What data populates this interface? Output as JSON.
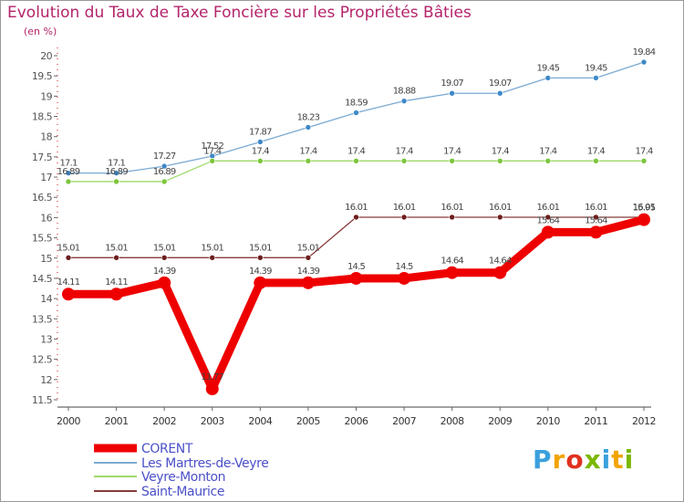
{
  "title": "Evolution du Taux de Taxe Foncière sur les Propriétés Bâties",
  "unit": "(en %)",
  "brand": {
    "text": "Proxiti",
    "letter_colors": [
      "#3aa0dc",
      "#f2a400",
      "#e0301e",
      "#7ab800",
      "#3aa0dc",
      "#f2a400",
      "#7ab800"
    ]
  },
  "chart_data": {
    "type": "line",
    "title": "Evolution du Taux de Taxe Foncière sur les Propriétés Bâties",
    "ylabel": "(en %)",
    "xlabel": "",
    "x": [
      "2000",
      "2001",
      "2002",
      "2003",
      "2004",
      "2005",
      "2006",
      "2007",
      "2008",
      "2009",
      "2010",
      "2011",
      "2012"
    ],
    "ylim": [
      11.5,
      20
    ],
    "yticks": [
      "11.5",
      "12",
      "12.5",
      "13",
      "13.5",
      "14",
      "14.5",
      "15",
      "15.5",
      "16",
      "16.5",
      "17",
      "17.5",
      "18",
      "18.5",
      "19",
      "19.5",
      "20"
    ],
    "grid": false,
    "legend_position": "bottom-left",
    "series": [
      {
        "name": "CORENT",
        "color": "#ee0000",
        "values": [
          14.11,
          14.11,
          14.39,
          11.77,
          14.39,
          14.39,
          14.5,
          14.5,
          14.64,
          14.64,
          15.64,
          15.64,
          15.95
        ],
        "labels": [
          "14.11",
          "14.11",
          "14.39",
          "11.77",
          "14.39",
          "14.39",
          "14.5",
          "14.5",
          "14.64",
          "14.64",
          "15.64",
          "15.64",
          "15.95"
        ]
      },
      {
        "name": "Les Martres-de-Veyre",
        "color": "#7aaad2",
        "marker_color": "#3d89c9",
        "values": [
          17.1,
          17.1,
          17.27,
          17.52,
          17.87,
          18.23,
          18.59,
          18.88,
          19.07,
          19.07,
          19.45,
          19.45,
          19.84
        ],
        "labels": [
          "17.1",
          "17.1",
          "17.27",
          "17.52",
          "17.87",
          "18.23",
          "18.59",
          "18.88",
          "19.07",
          "19.07",
          "19.45",
          "19.45",
          "19.84"
        ]
      },
      {
        "name": "Veyre-Monton",
        "color": "#9ed96a",
        "marker_color": "#7cc63a",
        "values": [
          16.89,
          16.89,
          16.89,
          17.4,
          17.4,
          17.4,
          17.4,
          17.4,
          17.4,
          17.4,
          17.4,
          17.4,
          17.4
        ],
        "labels": [
          "16.89",
          "16.89",
          "16.89",
          "17.4",
          "17.4",
          "17.4",
          "17.4",
          "17.4",
          "17.4",
          "17.4",
          "17.4",
          "17.4",
          "17.4"
        ]
      },
      {
        "name": "Saint-Maurice",
        "color": "#8a3b3b",
        "marker_color": "#6e1e1e",
        "values": [
          15.01,
          15.01,
          15.01,
          15.01,
          15.01,
          15.01,
          16.01,
          16.01,
          16.01,
          16.01,
          16.01,
          16.01,
          16.01
        ],
        "labels": [
          "15.01",
          "15.01",
          "15.01",
          "15.01",
          "15.01",
          "15.01",
          "16.01",
          "16.01",
          "16.01",
          "16.01",
          "16.01",
          "16.01",
          "16.01"
        ]
      }
    ]
  }
}
